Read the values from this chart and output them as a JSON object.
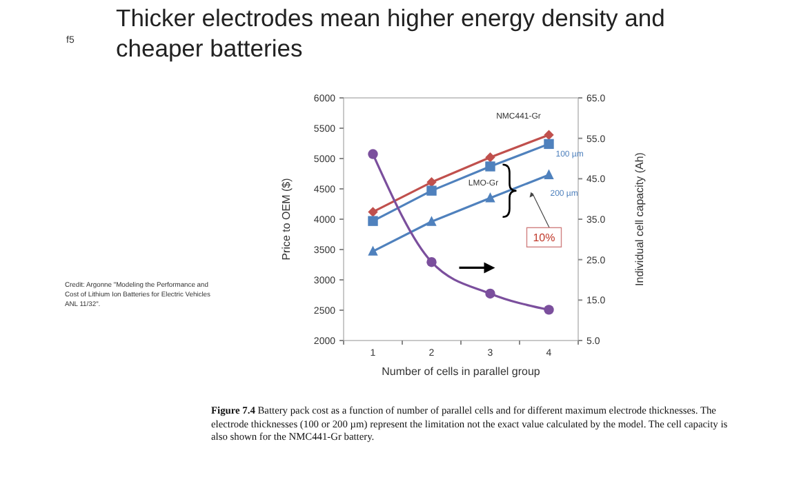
{
  "chart_data": {
    "type": "line",
    "title": "Thicker electrodes mean higher energy density and cheaper batteries",
    "xlabel": "Number of cells in parallel group",
    "ylabel": "Price to OEM ($)",
    "y2label": "Individual cell capacity (Ah)",
    "categories": [
      "1",
      "2",
      "3",
      "4"
    ],
    "series": [
      {
        "name": "NMC441-Gr",
        "color": "#c0504d",
        "marker": "diamond",
        "values": [
          4120,
          4610,
          5020,
          5390
        ]
      },
      {
        "name": "100 µm",
        "color": "#4f81bd",
        "marker": "square",
        "values": [
          3970,
          4470,
          4870,
          5240
        ]
      },
      {
        "name": "200 µm",
        "color": "#4f81bd",
        "marker": "triangle",
        "values": [
          3470,
          3960,
          4350,
          4730
        ]
      },
      {
        "color": "#7b4f9d",
        "marker": "circle",
        "axis": "y2",
        "values": [
          51.1,
          24.4,
          16.6,
          12.6
        ]
      }
    ],
    "ylim": [
      2000,
      6000
    ],
    "yticks": [
      2000,
      2500,
      3000,
      3500,
      4000,
      4500,
      5000,
      5500,
      6000
    ],
    "y2lim": [
      5,
      65
    ],
    "y2ticks": [
      {
        "value": 5,
        "label": "5.0"
      },
      {
        "value": 15,
        "label": "15.0"
      },
      {
        "value": 25,
        "label": "25.0"
      },
      {
        "value": 35,
        "label": "35.0"
      },
      {
        "value": 45,
        "label": "45.0"
      },
      {
        "value": 55,
        "label": "55.0"
      },
      {
        "value": 65,
        "label": "65.0"
      }
    ],
    "grid": false,
    "line_style": "solid",
    "annotations": [
      "f5",
      "Credit: Argonne \"Modeling the Performance and Cost of Lithium Ion Batteries for Electric Vehicles ANL 11/32\".",
      "Figure 7.4 Battery pack cost as a function of number of parallel cells and for different maximum electrode thicknesses. The electrode thicknesses (100 or 200 µm) represent the limitation not the exact value calculated by the model. The cell capacity is also shown for the NMC441-Gr battery.",
      "LMO-Gr",
      "10%"
    ]
  }
}
